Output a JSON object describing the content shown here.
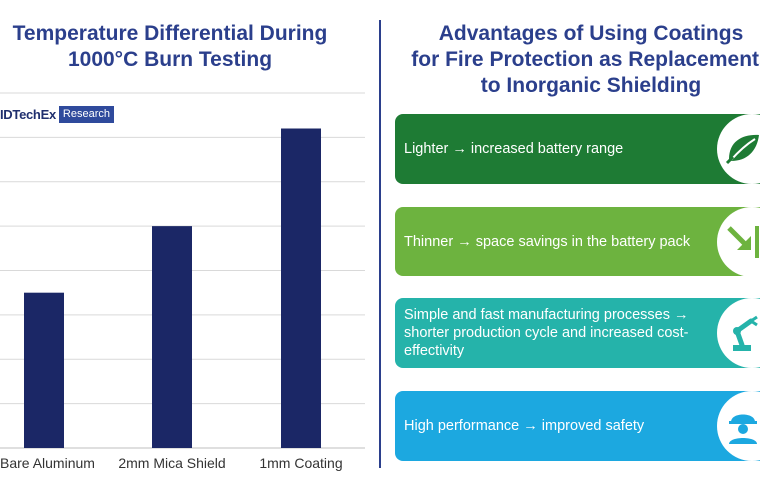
{
  "left_title": {
    "line1": "Temperature Differential During",
    "line2": "1000°C Burn Testing"
  },
  "right_title": {
    "line1": "Advantages of Using Coatings",
    "line2": "for Fire Protection as Replacements",
    "line3": "to Inorganic Shielding"
  },
  "logo": {
    "brand": "IDTechEx",
    "tag": "Research"
  },
  "chart_data": {
    "type": "bar",
    "categories": [
      "Bare Aluminum",
      "2mm Mica Shield",
      "1mm Coating"
    ],
    "values": [
      35,
      50,
      72
    ],
    "title": "Temperature Differential During 1000°C Burn Testing",
    "xlabel": "",
    "ylabel": "",
    "ylim": [
      0,
      80
    ],
    "grid": true,
    "legend": "none",
    "bar_color": "#1b2766"
  },
  "advantages": [
    {
      "text": "Lighter → increased battery range",
      "color": "#1e7b34",
      "icon": "leaf-icon"
    },
    {
      "text": "Thinner → space savings in the battery pack",
      "color": "#6db33f",
      "icon": "compress-arrow-icon"
    },
    {
      "text": "Simple and fast manufacturing processes → shorter production cycle and increased cost-effectivity",
      "color": "#25b3aa",
      "icon": "robot-arm-icon"
    },
    {
      "text": "High performance → improved safety",
      "color": "#1ca8e0",
      "icon": "safety-worker-icon"
    }
  ]
}
